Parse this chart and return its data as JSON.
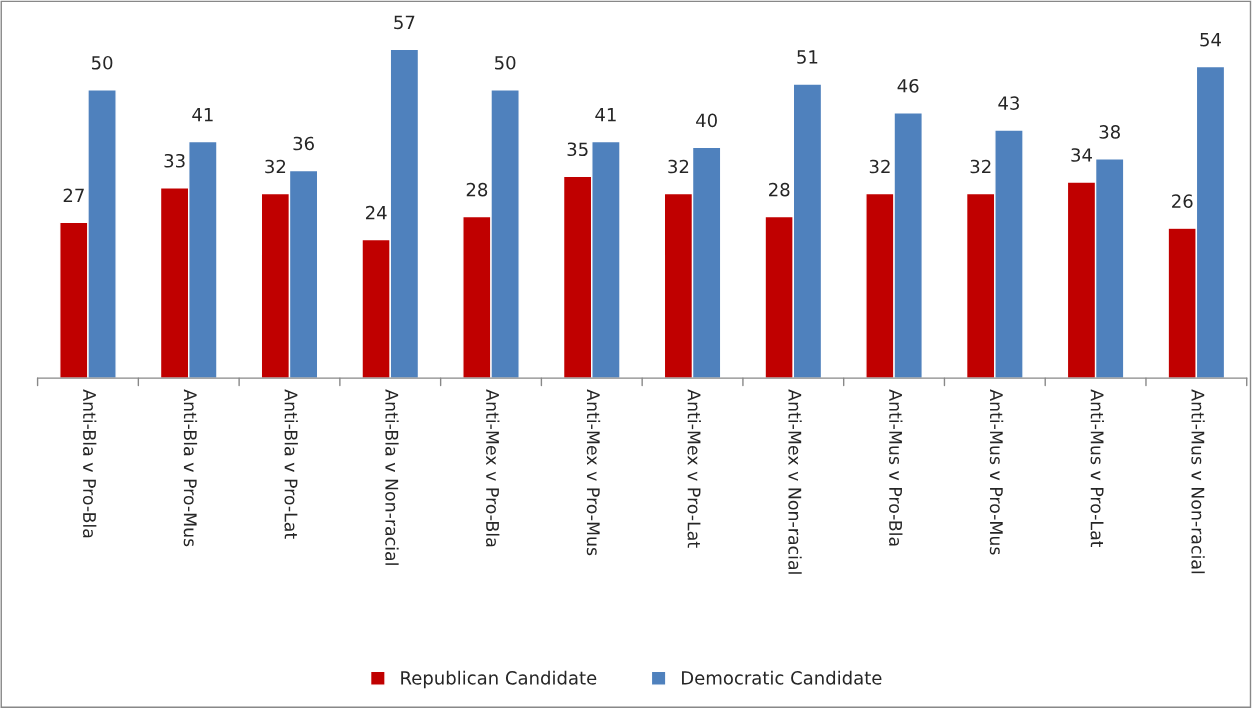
{
  "chart_data": {
    "type": "bar",
    "categories": [
      "Anti-Bla v Pro-Bla",
      "Anti-Bla v Pro-Mus",
      "Anti-Bla v Pro-Lat",
      "Anti-Bla v Non-racial",
      "Anti-Mex v Pro-Bla",
      "Anti-Mex v Pro-Mus",
      "Anti-Mex v Pro-Lat",
      "Anti-Mex v Non-racial",
      "Anti-Mus v Pro-Bla",
      "Anti-Mus v Pro-Mus",
      "Anti-Mus v Pro-Lat",
      "Anti-Mus v Non-racial"
    ],
    "series": [
      {
        "name": "Republican Candidate",
        "color": "#c00000",
        "values": [
          27,
          33,
          32,
          24,
          28,
          35,
          32,
          28,
          32,
          32,
          34,
          26
        ]
      },
      {
        "name": "Democratic Candidate",
        "color": "#4f81bd",
        "values": [
          50,
          41,
          36,
          57,
          50,
          41,
          40,
          51,
          46,
          43,
          38,
          54
        ]
      }
    ],
    "data_labels": true,
    "grid": false,
    "legend": "bottom",
    "tick_labels": "x"
  }
}
